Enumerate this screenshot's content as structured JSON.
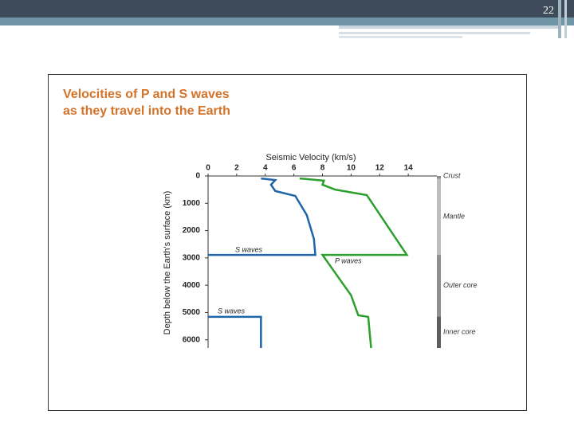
{
  "slide_number": "22",
  "chart_data": {
    "type": "line",
    "title": [
      "Velocities of P and S waves",
      "as they travel into the Earth"
    ],
    "x_label": "Seismic Velocity (km/s)",
    "y_label": "Depth below the Earth's surface (km)",
    "xlim": [
      0,
      16
    ],
    "xticks": [
      0,
      2,
      4,
      6,
      8,
      10,
      12,
      14
    ],
    "ylim": [
      0,
      6300
    ],
    "yticks": [
      0,
      1000,
      2000,
      3000,
      4000,
      5000,
      6000
    ],
    "y_inverted": true,
    "series": [
      {
        "name": "S waves",
        "color": "#1f65a8",
        "x": [
          3.7,
          4.7,
          4.4,
          4.7,
          6.1,
          6.9,
          7.4,
          7.5,
          0,
          null,
          0,
          3.7,
          3.7
        ],
        "y": [
          90,
          150,
          320,
          550,
          730,
          1430,
          2300,
          2890,
          2890,
          null,
          5160,
          5160,
          6300
        ]
      },
      {
        "name": "P waves",
        "color": "#2ca02c",
        "x": [
          6.4,
          8.1,
          8.0,
          8.9,
          11.1,
          13.9,
          8.0,
          10.0,
          10.5,
          11.2,
          11.4
        ],
        "y": [
          90,
          170,
          320,
          500,
          700,
          2890,
          2890,
          4370,
          5100,
          5160,
          6300
        ]
      }
    ],
    "annotations": [
      "S waves",
      "S waves",
      "P waves"
    ],
    "layers": [
      {
        "name": "Crust",
        "top": 0,
        "bottom": 100,
        "color": "#8c8c8c"
      },
      {
        "name": "Mantle",
        "top": 100,
        "bottom": 2890,
        "color": "#bdbdbd"
      },
      {
        "name": "Outer core",
        "top": 2890,
        "bottom": 5150,
        "color": "#8f8f8f"
      },
      {
        "name": "Inner core",
        "top": 5150,
        "bottom": 6300,
        "color": "#5e5e5e"
      }
    ]
  }
}
